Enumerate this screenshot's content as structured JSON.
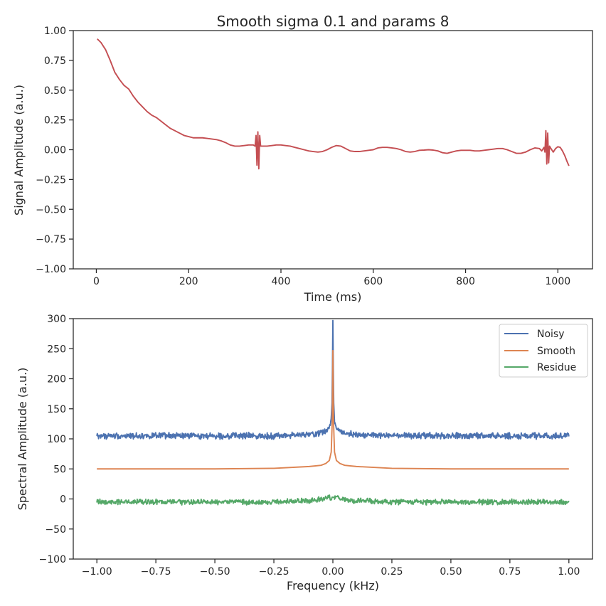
{
  "chart_data": [
    {
      "type": "line",
      "title": "Smooth sigma 0.1 and params 8",
      "xlabel": "Time (ms)",
      "ylabel": "Signal Amplitude (a.u.)",
      "xlim": [
        -50,
        1075
      ],
      "ylim": [
        -1.0,
        1.0
      ],
      "xticks": [
        0,
        200,
        400,
        600,
        800,
        1000
      ],
      "xtick_labels": [
        "0",
        "200",
        "400",
        "600",
        "800",
        "1000"
      ],
      "yticks": [
        -1.0,
        -0.75,
        -0.5,
        -0.25,
        0.0,
        0.25,
        0.5,
        0.75,
        1.0
      ],
      "ytick_labels": [
        "−1.00",
        "−0.75",
        "−0.50",
        "−0.25",
        "0.00",
        "0.25",
        "0.50",
        "0.75",
        "1.00"
      ],
      "grid": false,
      "series": [
        {
          "color": "#c44e52",
          "x": [
            2,
            10,
            20,
            30,
            40,
            50,
            60,
            70,
            80,
            90,
            100,
            110,
            120,
            130,
            140,
            150,
            160,
            170,
            180,
            190,
            200,
            210,
            220,
            230,
            240,
            250,
            260,
            270,
            280,
            290,
            300,
            310,
            320,
            330,
            340,
            344,
            346,
            348,
            350,
            352,
            354,
            356,
            360,
            370,
            380,
            390,
            400,
            410,
            420,
            430,
            440,
            450,
            460,
            470,
            480,
            490,
            500,
            510,
            520,
            530,
            540,
            550,
            560,
            570,
            580,
            590,
            600,
            610,
            620,
            630,
            640,
            650,
            660,
            670,
            680,
            690,
            700,
            710,
            720,
            730,
            740,
            750,
            760,
            770,
            780,
            790,
            800,
            810,
            820,
            830,
            840,
            850,
            860,
            870,
            880,
            890,
            900,
            910,
            920,
            930,
            940,
            950,
            960,
            965,
            970,
            972,
            974,
            976,
            978,
            980,
            982,
            985,
            990,
            995,
            1000,
            1005,
            1010,
            1015,
            1020,
            1024
          ],
          "y": [
            0.93,
            0.9,
            0.84,
            0.75,
            0.65,
            0.59,
            0.54,
            0.51,
            0.45,
            0.4,
            0.36,
            0.32,
            0.29,
            0.27,
            0.24,
            0.21,
            0.18,
            0.16,
            0.14,
            0.12,
            0.11,
            0.1,
            0.1,
            0.1,
            0.095,
            0.09,
            0.085,
            0.075,
            0.06,
            0.04,
            0.03,
            0.03,
            0.035,
            0.04,
            0.04,
            0.03,
            0.12,
            -0.13,
            0.15,
            -0.16,
            0.12,
            0.03,
            0.03,
            0.03,
            0.035,
            0.04,
            0.04,
            0.035,
            0.03,
            0.02,
            0.01,
            0.0,
            -0.01,
            -0.015,
            -0.02,
            -0.015,
            0.0,
            0.02,
            0.035,
            0.03,
            0.01,
            -0.01,
            -0.015,
            -0.015,
            -0.01,
            -0.005,
            0.0,
            0.015,
            0.02,
            0.02,
            0.015,
            0.01,
            0.0,
            -0.015,
            -0.02,
            -0.015,
            -0.005,
            -0.003,
            0.0,
            -0.003,
            -0.01,
            -0.025,
            -0.03,
            -0.02,
            -0.01,
            -0.005,
            -0.005,
            -0.005,
            -0.01,
            -0.01,
            -0.005,
            0.0,
            0.005,
            0.01,
            0.01,
            0.0,
            -0.015,
            -0.03,
            -0.03,
            -0.02,
            0.0,
            0.015,
            0.01,
            -0.01,
            0.02,
            -0.02,
            0.16,
            -0.12,
            0.14,
            -0.11,
            0.03,
            0.01,
            -0.02,
            0.01,
            0.025,
            0.02,
            -0.01,
            -0.05,
            -0.1,
            -0.135
          ]
        }
      ]
    },
    {
      "type": "line",
      "title": "",
      "xlabel": "Frequency (kHz)",
      "ylabel": "Spectral Amplitude (a.u.)",
      "xlim": [
        -1.1,
        1.1
      ],
      "ylim": [
        -100,
        300
      ],
      "xticks": [
        -1.0,
        -0.75,
        -0.5,
        -0.25,
        0.0,
        0.25,
        0.5,
        0.75,
        1.0
      ],
      "xtick_labels": [
        "−1.00",
        "−0.75",
        "−0.50",
        "−0.25",
        "0.00",
        "0.25",
        "0.50",
        "0.75",
        "1.00"
      ],
      "yticks": [
        -100,
        -50,
        0,
        50,
        100,
        150,
        200,
        250,
        300
      ],
      "ytick_labels": [
        "−100",
        "−50",
        "0",
        "50",
        "100",
        "150",
        "200",
        "250",
        "300"
      ],
      "grid": false,
      "legend": {
        "placement": "top-right",
        "entries": [
          "Noisy",
          "Smooth",
          "Residue"
        ]
      },
      "series": [
        {
          "name": "Noisy",
          "color": "#4c72b0",
          "x": [
            -1.0,
            -0.75,
            -0.5,
            -0.25,
            -0.1,
            -0.05,
            -0.03,
            -0.015,
            -0.007,
            -0.003,
            0.0,
            0.003,
            0.007,
            0.015,
            0.03,
            0.05,
            0.1,
            0.25,
            0.5,
            0.75,
            1.0
          ],
          "y": [
            105,
            105,
            105,
            105,
            107,
            110,
            113,
            118,
            130,
            165,
            297,
            165,
            130,
            118,
            113,
            110,
            107,
            105,
            105,
            105,
            105
          ],
          "noise": 4
        },
        {
          "name": "Smooth",
          "color": "#dd8452",
          "x": [
            -1.0,
            -0.75,
            -0.5,
            -0.25,
            -0.1,
            -0.05,
            -0.03,
            -0.015,
            -0.007,
            -0.003,
            0.0,
            0.003,
            0.007,
            0.015,
            0.03,
            0.05,
            0.1,
            0.25,
            0.5,
            0.75,
            1.0
          ],
          "y": [
            50,
            50,
            50,
            51,
            54,
            56,
            59,
            64,
            78,
            125,
            247,
            125,
            78,
            64,
            59,
            56,
            54,
            51,
            50,
            50,
            50
          ]
        },
        {
          "name": "Residue",
          "color": "#55a868",
          "x": [
            -1.0,
            -0.75,
            -0.5,
            -0.25,
            -0.1,
            -0.05,
            -0.02,
            0.0,
            0.02,
            0.05,
            0.1,
            0.25,
            0.5,
            0.75,
            1.0
          ],
          "y": [
            -5,
            -5,
            -5,
            -5,
            -3,
            0,
            2,
            3,
            2,
            0,
            -3,
            -5,
            -5,
            -5,
            -5
          ],
          "noise": 3.5
        }
      ]
    }
  ]
}
